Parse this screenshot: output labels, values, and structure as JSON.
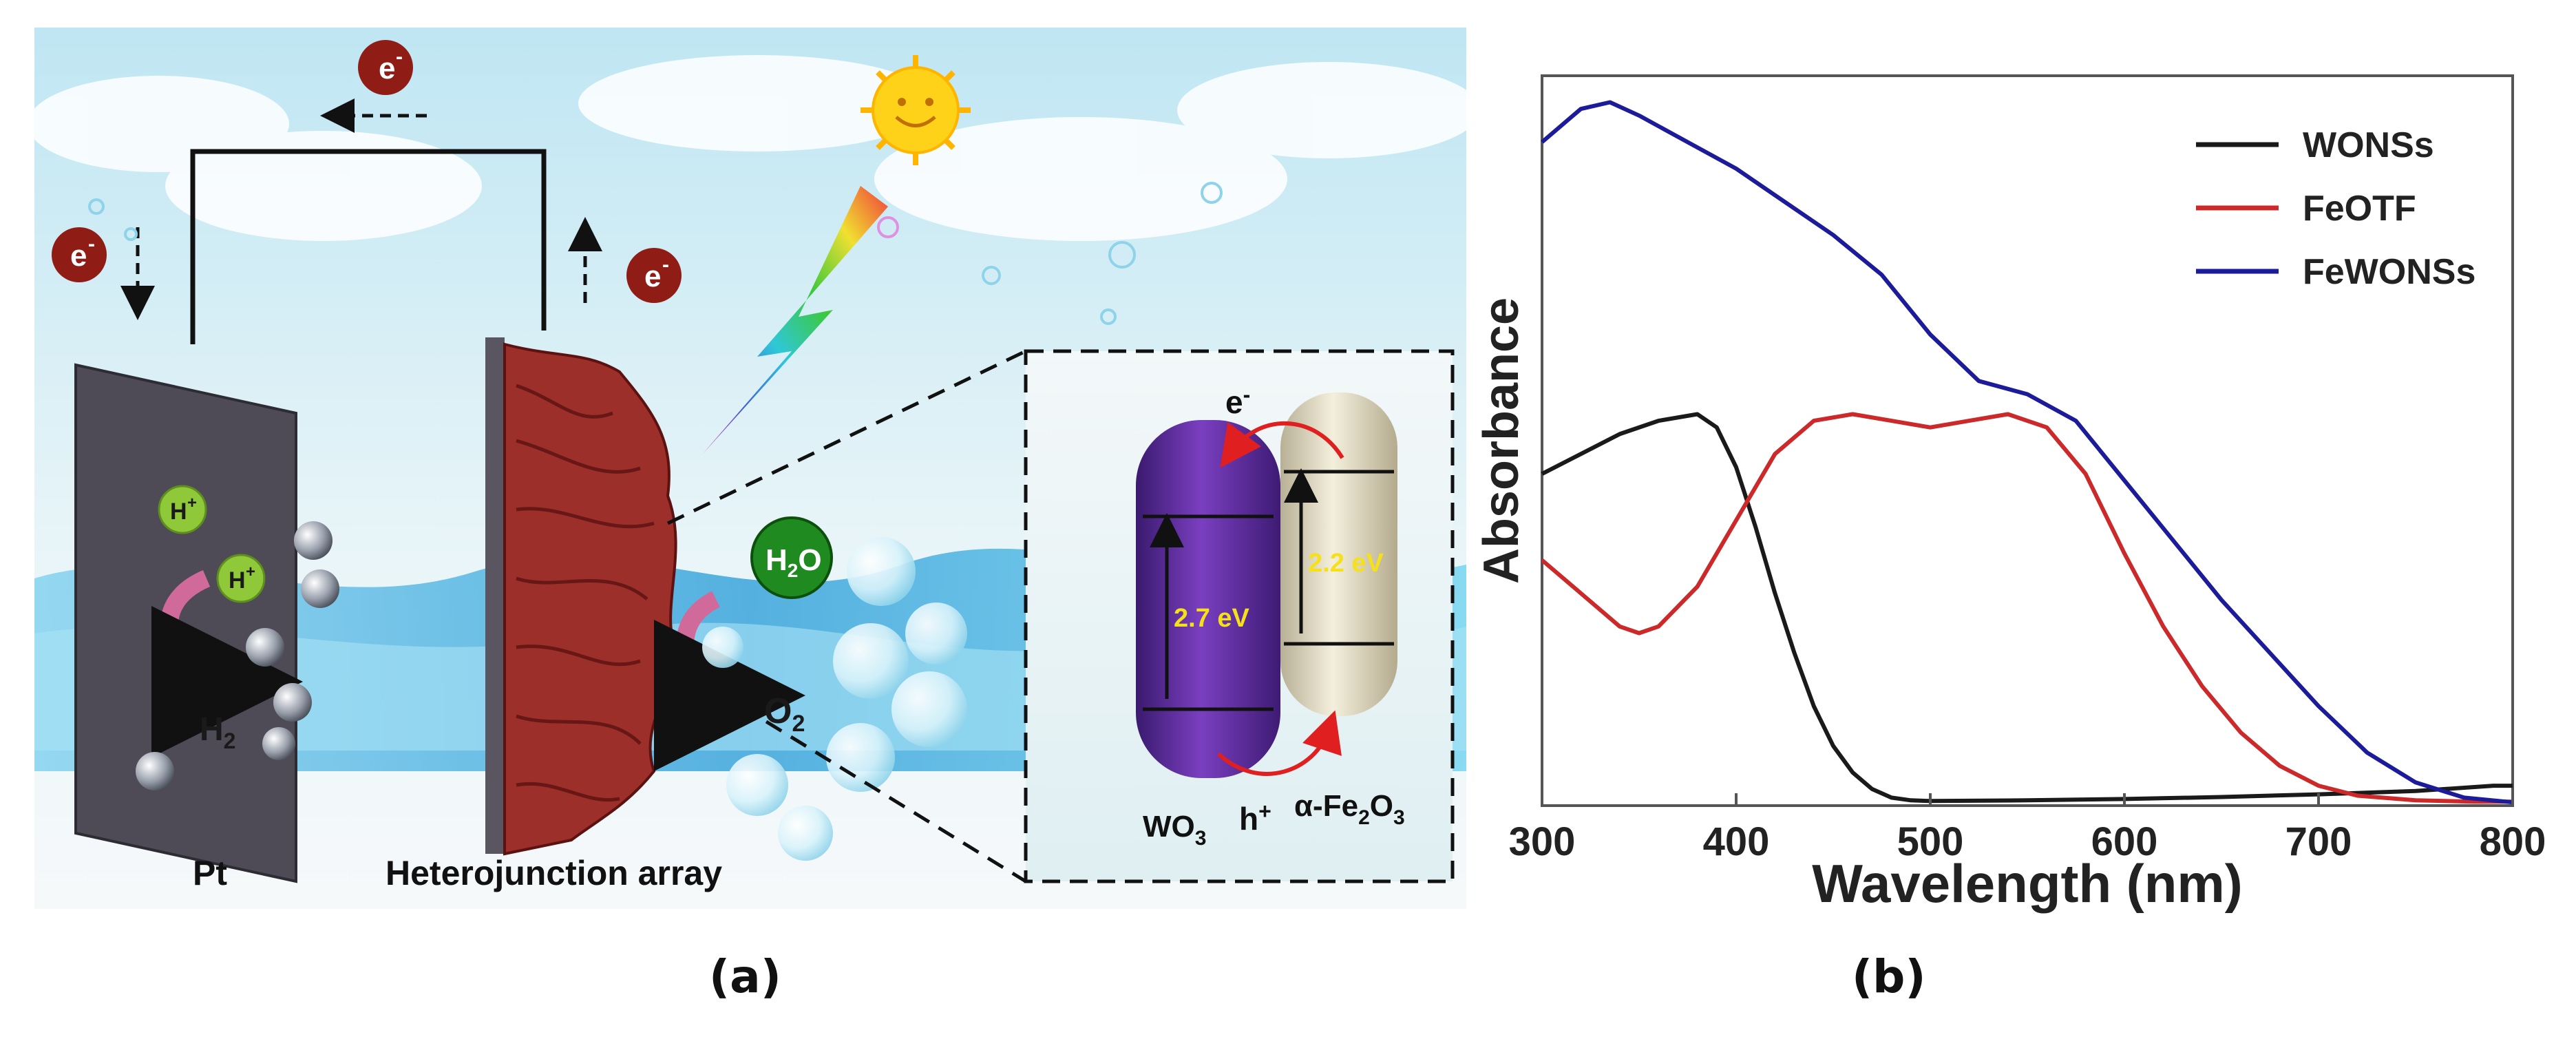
{
  "panel_a": {
    "label": "(a)",
    "electron": "e",
    "electron_sup": "-",
    "proton": "H",
    "proton_sup": "+",
    "h2": "H",
    "h2_sub": "2",
    "water_h": "H",
    "water_sub": "2",
    "water_o": "O",
    "o2": "O",
    "o2_sub": "2",
    "pt_label": "Pt",
    "array_label": "Heterojunction array",
    "inset": {
      "wo3_gap": "2.7 eV",
      "fe2o3_gap": "2.2 eV",
      "wo3": "WO",
      "wo3_sub": "3",
      "fe2o3_prefix": "α-Fe",
      "fe2o3_sub1": "2",
      "fe2o3_o": "O",
      "fe2o3_sub2": "3",
      "hole": "h",
      "hole_sup": "+",
      "electron": "e",
      "electron_sup": "-",
      "gap_text_color": "#f5e01a",
      "wo3_color": "#5a2a9a",
      "fe2o3_color": "#e6e0c8"
    },
    "colors": {
      "electrode": "#4e4b57",
      "array": "#9c2f2a",
      "electron_ball": "#8f1d16",
      "proton_ball": "#8fc93a",
      "water_ball": "#1f8a1f",
      "sun": "#ffd21a"
    }
  },
  "chart_data": {
    "type": "line",
    "label": "(b)",
    "xlabel": "Wavelength (nm)",
    "ylabel": "Absorbance",
    "xlim": [
      300,
      800
    ],
    "xticks": [
      300,
      400,
      500,
      600,
      700,
      800
    ],
    "y_ticks_shown": false,
    "legend_position": "top-right",
    "series": [
      {
        "name": "WONSs",
        "color": "#1a1a1a",
        "x": [
          300,
          320,
          340,
          360,
          380,
          390,
          400,
          410,
          420,
          430,
          440,
          450,
          460,
          470,
          480,
          490,
          500,
          550,
          600,
          650,
          700,
          750,
          790,
          800
        ],
        "y": [
          0.5,
          0.53,
          0.56,
          0.58,
          0.59,
          0.57,
          0.51,
          0.42,
          0.32,
          0.23,
          0.15,
          0.09,
          0.05,
          0.025,
          0.012,
          0.008,
          0.007,
          0.008,
          0.01,
          0.013,
          0.017,
          0.022,
          0.03,
          0.03
        ]
      },
      {
        "name": "FeOTF",
        "color": "#cc2a2a",
        "x": [
          300,
          320,
          340,
          350,
          360,
          380,
          400,
          420,
          440,
          460,
          480,
          500,
          520,
          540,
          560,
          580,
          600,
          620,
          640,
          660,
          680,
          700,
          720,
          750,
          780,
          800
        ],
        "y": [
          0.37,
          0.32,
          0.27,
          0.26,
          0.27,
          0.33,
          0.43,
          0.53,
          0.58,
          0.59,
          0.58,
          0.57,
          0.58,
          0.59,
          0.57,
          0.5,
          0.38,
          0.27,
          0.18,
          0.11,
          0.06,
          0.03,
          0.015,
          0.008,
          0.006,
          0.006
        ]
      },
      {
        "name": "FeWONSs",
        "color": "#1c1c9a",
        "x": [
          300,
          320,
          335,
          350,
          375,
          400,
          425,
          450,
          475,
          500,
          525,
          550,
          575,
          600,
          625,
          650,
          675,
          700,
          725,
          750,
          775,
          800
        ],
        "y": [
          1.0,
          1.05,
          1.06,
          1.04,
          1.0,
          0.96,
          0.91,
          0.86,
          0.8,
          0.71,
          0.64,
          0.62,
          0.58,
          0.49,
          0.4,
          0.31,
          0.23,
          0.15,
          0.08,
          0.035,
          0.012,
          0.005
        ]
      }
    ],
    "ylim": [
      0,
      1.1
    ]
  }
}
